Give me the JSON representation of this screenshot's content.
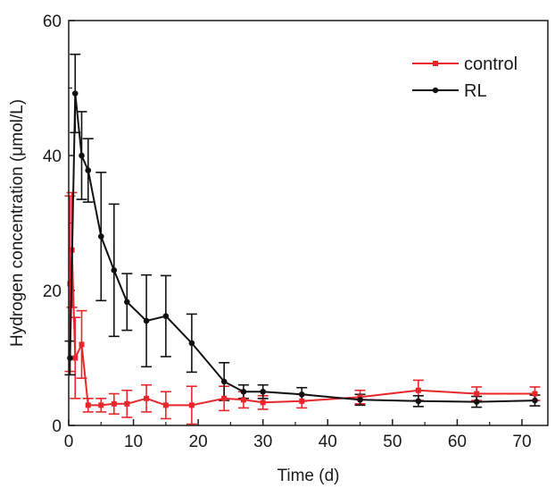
{
  "chart_data": {
    "type": "line",
    "title": "",
    "xlabel": "Time (d)",
    "ylabel": "Hydrogen concentration (μmol/L)",
    "xlim": [
      0,
      74
    ],
    "ylim": [
      0,
      60
    ],
    "x_ticks": [
      0,
      10,
      20,
      30,
      40,
      50,
      60,
      70
    ],
    "y_ticks": [
      0,
      20,
      40,
      60
    ],
    "legend_position": "top-right",
    "error_bars": true,
    "series": [
      {
        "name": "control",
        "color": "#e8262b",
        "marker": "square",
        "x": [
          0.2,
          0.5,
          1,
          2,
          3,
          5,
          7,
          9,
          12,
          15,
          19,
          24,
          27,
          30,
          36,
          45,
          54,
          63,
          72
        ],
        "y": [
          21,
          26,
          10,
          12,
          3,
          3,
          3.2,
          3.2,
          4,
          3,
          3,
          4,
          3.8,
          3.4,
          3.6,
          4.2,
          5.2,
          4.7,
          4.7
        ],
        "err": [
          13,
          8.5,
          6,
          5,
          1,
          1,
          1.5,
          2,
          2,
          2,
          2.8,
          1.8,
          1.2,
          1,
          1,
          1,
          1.5,
          1,
          1
        ]
      },
      {
        "name": "RL",
        "color": "#111111",
        "marker": "circle",
        "x": [
          0.2,
          1,
          2,
          3,
          5,
          7,
          9,
          12,
          15,
          19,
          24,
          27,
          30,
          36,
          45,
          54,
          63,
          72
        ],
        "y": [
          10,
          49.2,
          40,
          37.8,
          28,
          23,
          18.3,
          15.5,
          16.2,
          12.2,
          6.5,
          5,
          5,
          4.6,
          3.8,
          3.6,
          3.5,
          3.7
        ],
        "err": [
          2.5,
          5.8,
          6.5,
          4.7,
          9.5,
          9.8,
          4.2,
          6.8,
          6,
          4.3,
          2.8,
          1,
          1,
          1,
          0.8,
          0.8,
          0.8,
          0.8
        ]
      }
    ]
  }
}
